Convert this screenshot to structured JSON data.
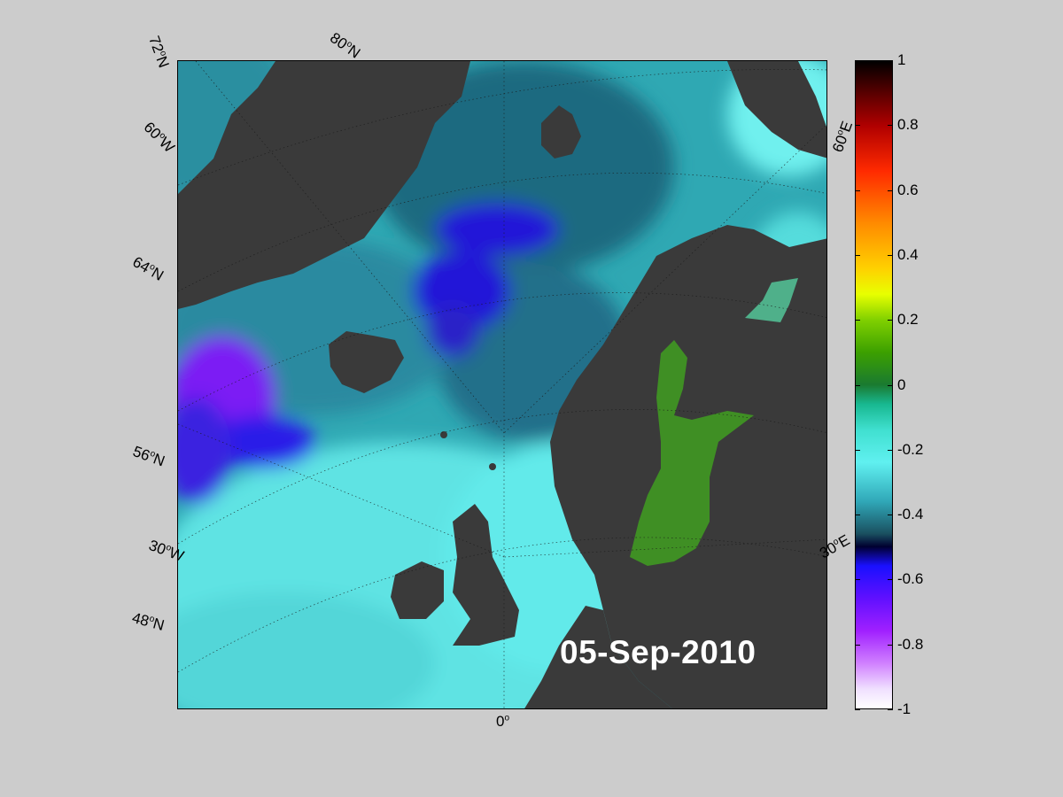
{
  "date_label": "05-Sep-2010",
  "graticule_labels": {
    "lat_72": "72",
    "lat_80": "80",
    "lon_60w": "60",
    "lat_64": "64",
    "lat_56": "56",
    "lon_30w": "30",
    "lat_48": "48",
    "lon_0": "0",
    "lon_30e": "30",
    "lon_60e": "60"
  },
  "hemisphere": {
    "n": "N",
    "w": "W",
    "e": "E",
    "deg": "o"
  },
  "colorbar": {
    "min": -1,
    "max": 1,
    "ticks": [
      "1",
      "0.8",
      "0.6",
      "0.4",
      "0.2",
      "0",
      "-0.2",
      "-0.4",
      "-0.6",
      "-0.8",
      "-1"
    ],
    "tick_values": [
      1,
      0.8,
      0.6,
      0.4,
      0.2,
      0,
      -0.2,
      -0.4,
      -0.6,
      -0.8,
      -1
    ]
  },
  "colors": {
    "land": "#3a3a3a",
    "ocean_base": "#2fa8b3",
    "ocean_deep": "#1d5f74",
    "anomaly_blue": "#2a1fe0",
    "anomaly_purple": "#7a1ff0",
    "baltic_green": "#3c8c1e",
    "light_cyan": "#5fe0e0"
  }
}
